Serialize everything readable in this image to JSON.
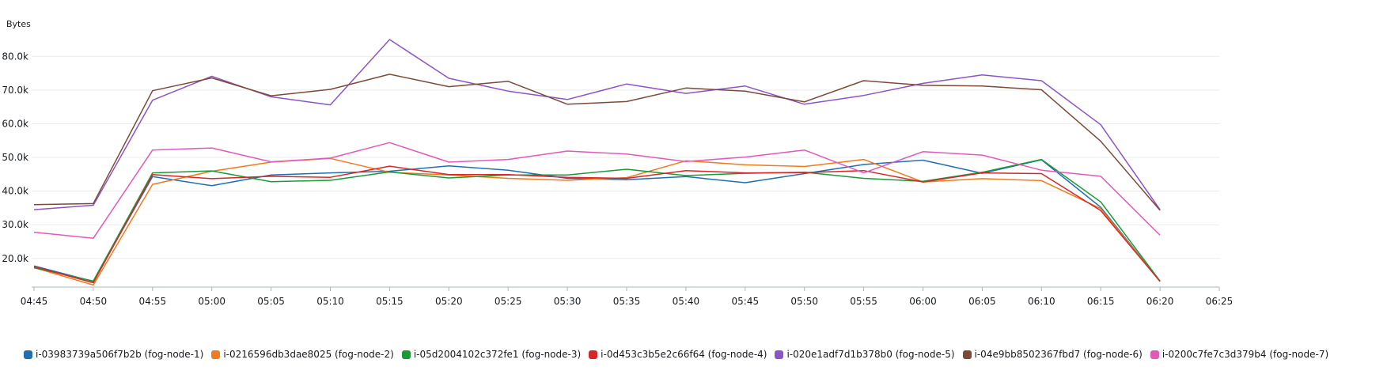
{
  "chart_data": {
    "type": "line",
    "ylabel": "Bytes",
    "ylim": [
      11500,
      85000
    ],
    "y_ticks": [
      20000,
      30000,
      40000,
      50000,
      60000,
      70000,
      80000
    ],
    "y_tick_labels": [
      "20.0k",
      "30.0k",
      "40.0k",
      "50.0k",
      "60.0k",
      "70.0k",
      "80.0k"
    ],
    "x": [
      "04:45",
      "04:50",
      "04:55",
      "05:00",
      "05:05",
      "05:10",
      "05:15",
      "05:20",
      "05:25",
      "05:30",
      "05:35",
      "05:40",
      "05:45",
      "05:50",
      "05:55",
      "06:00",
      "06:05",
      "06:10",
      "06:15",
      "06:20"
    ],
    "x_tick_labels": [
      "04:45",
      "04:50",
      "04:55",
      "05:00",
      "05:05",
      "05:10",
      "05:15",
      "05:20",
      "05:25",
      "05:30",
      "05:35",
      "05:40",
      "05:45",
      "05:50",
      "05:55",
      "06:00",
      "06:05",
      "06:10",
      "06:15",
      "06:20",
      "06:25"
    ],
    "grid": true,
    "legend_position": "bottom",
    "series": [
      {
        "name": "i-03983739a506f7b2b (fog-node-1)",
        "color": "#1f6fb2",
        "values": [
          17800,
          13200,
          44300,
          41600,
          44800,
          45400,
          45900,
          47500,
          46200,
          43800,
          43400,
          44300,
          42500,
          45200,
          47900,
          49200,
          45300,
          49300,
          35200,
          13200
        ]
      },
      {
        "name": "i-0216596db3dae8025 (fog-node-2)",
        "color": "#f07a1e",
        "values": [
          17300,
          12100,
          42000,
          45900,
          48600,
          49700,
          45600,
          44800,
          43800,
          43200,
          44000,
          49000,
          47800,
          47300,
          49400,
          42700,
          43700,
          43100,
          34800,
          13200
        ]
      },
      {
        "name": "i-05d2004102c372fe1 (fog-node-3)",
        "color": "#1a9a37",
        "values": [
          17200,
          13300,
          45400,
          46000,
          42800,
          43200,
          45700,
          43900,
          44800,
          44800,
          46500,
          44600,
          45300,
          45600,
          43800,
          42900,
          45600,
          49400,
          36800,
          13300
        ]
      },
      {
        "name": "i-0d453c3b5e2c66f64 (fog-node-4)",
        "color": "#d62728",
        "values": [
          17600,
          12800,
          44900,
          43700,
          44400,
          44100,
          47400,
          44900,
          44900,
          44100,
          43800,
          46100,
          45400,
          45500,
          46100,
          42700,
          45400,
          45200,
          34200,
          13200
        ]
      },
      {
        "name": "i-020e1adf7d1b378b0 (fog-node-5)",
        "color": "#8c54c6",
        "values": [
          34500,
          35800,
          67000,
          74100,
          68000,
          65600,
          85000,
          73500,
          69700,
          67200,
          71800,
          69000,
          71200,
          65800,
          68400,
          72000,
          74500,
          72800,
          59700,
          34500
        ]
      },
      {
        "name": "i-04e9bb8502367fbd7 (fog-node-6)",
        "color": "#7b4a39",
        "values": [
          36000,
          36300,
          69800,
          73600,
          68300,
          70200,
          74700,
          71000,
          72600,
          65800,
          66600,
          70600,
          69700,
          66500,
          72800,
          71400,
          71200,
          70100,
          54800,
          34300
        ]
      },
      {
        "name": "i-0200c7fe7c3d379b4 (fog-node-7)",
        "color": "#e15ab9",
        "values": [
          27800,
          26000,
          52200,
          52800,
          48700,
          49800,
          54400,
          48600,
          49400,
          51900,
          51000,
          48800,
          50100,
          52200,
          45400,
          51700,
          50700,
          46200,
          44400,
          26900
        ]
      }
    ]
  }
}
